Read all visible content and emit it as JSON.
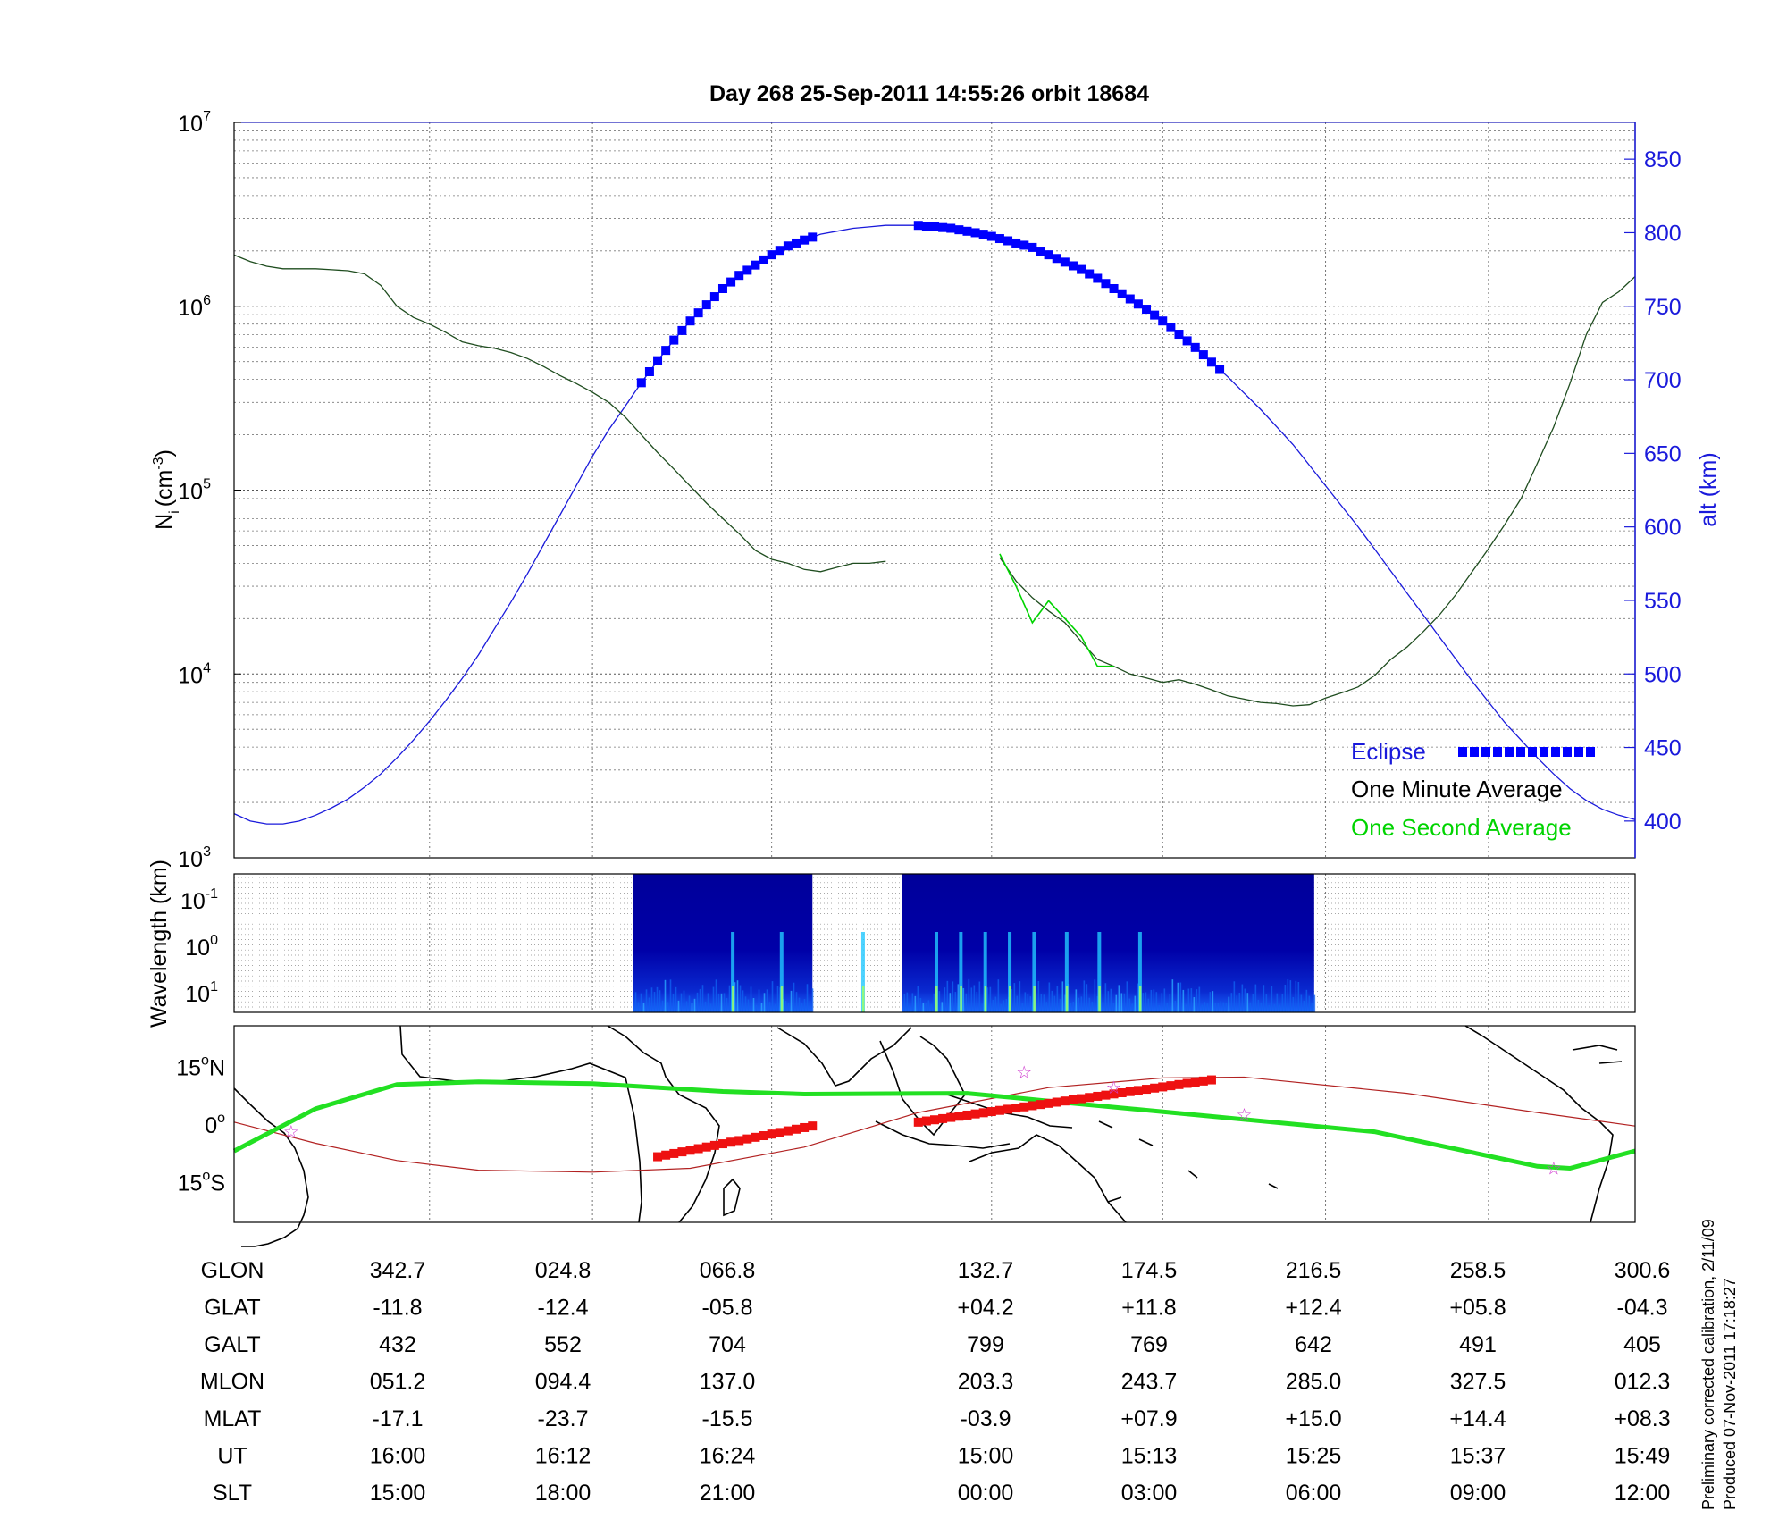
{
  "title": "Day 268  25-Sep-2011 14:55:26   orbit 18684",
  "colors": {
    "eclipse": "#0000ff",
    "one_minute": "#1f4d1f",
    "one_second": "#00d400",
    "altitude": "#1a1adb",
    "track_magnetic": "#22e022",
    "track_geographic": "#b22222",
    "eclipse_track": "#ee1111",
    "spectrogram_bg": "#00008f"
  },
  "chart_data": [
    {
      "type": "line",
      "name": "ion_density_panel",
      "x": [
        0,
        1,
        2,
        3,
        4,
        5,
        6,
        7,
        8,
        9,
        10,
        11,
        12,
        13,
        14,
        15,
        16,
        17,
        18,
        19,
        20,
        21,
        22,
        23,
        24,
        25,
        26,
        27,
        28,
        29,
        30,
        31,
        32,
        33,
        34,
        35,
        36,
        37,
        38,
        39,
        40,
        41,
        42,
        43,
        44,
        45,
        46,
        47,
        48,
        49,
        50,
        51,
        52,
        53,
        54,
        55,
        56,
        57,
        58,
        59,
        60,
        61,
        62,
        63,
        64,
        65,
        66,
        67,
        68,
        69,
        70,
        71,
        72,
        73,
        74,
        75,
        76,
        77,
        78,
        79,
        80,
        81,
        82,
        83,
        84,
        85,
        86
      ],
      "y_left": {
        "label": "N",
        "label_sub": "i",
        "label_unit": "(cm",
        "label_unit_sup": "-3",
        "label_unit_end": ")",
        "scale": "log",
        "range": [
          1000,
          10000000
        ],
        "ticks": [
          {
            "base": "10",
            "exp": "3"
          },
          {
            "base": "10",
            "exp": "4"
          },
          {
            "base": "10",
            "exp": "5"
          },
          {
            "base": "10",
            "exp": "6"
          },
          {
            "base": "10",
            "exp": "7"
          }
        ]
      },
      "y_right": {
        "label": "alt (km)",
        "range": [
          375,
          875
        ],
        "ticks": [
          "400",
          "450",
          "500",
          "550",
          "600",
          "650",
          "700",
          "750",
          "800",
          "850"
        ]
      },
      "series": [
        {
          "name": "One Minute Average",
          "axis": "left",
          "y": [
            1900000,
            1750000,
            1650000,
            1600000,
            1600000,
            1600000,
            1580000,
            1560000,
            1500000,
            1300000,
            1000000,
            870000,
            800000,
            720000,
            640000,
            610000,
            590000,
            560000,
            520000,
            470000,
            420000,
            380000,
            340000,
            300000,
            250000,
            200000,
            160000,
            130000,
            105000,
            85000,
            70000,
            58000,
            47000,
            42000,
            40000,
            37000,
            36000,
            38000,
            40000,
            40000,
            41000,
            null,
            null,
            null,
            null,
            null,
            null,
            43000,
            32000,
            26000,
            22000,
            19000,
            15000,
            12000,
            11000,
            10000,
            9500,
            9000,
            9300,
            8800,
            8200,
            7600,
            7300,
            7000,
            6900,
            6700,
            6800,
            7400,
            7900,
            8500,
            9800,
            12000,
            14000,
            17000,
            21000,
            27000,
            36000,
            48000,
            65000,
            90000,
            140000,
            220000,
            380000,
            700000,
            1050000,
            1200000,
            1450000
          ]
        },
        {
          "name": "One Second Average",
          "axis": "left",
          "y": [
            null,
            null,
            null,
            null,
            null,
            null,
            null,
            null,
            null,
            null,
            null,
            null,
            null,
            null,
            null,
            null,
            null,
            null,
            null,
            null,
            null,
            null,
            null,
            null,
            null,
            null,
            null,
            null,
            null,
            null,
            null,
            null,
            null,
            null,
            null,
            null,
            null,
            null,
            null,
            null,
            null,
            null,
            null,
            null,
            null,
            null,
            null,
            45000,
            30000,
            19000,
            25000,
            20000,
            16000,
            11000,
            11000,
            null,
            null,
            null,
            null,
            null,
            null,
            null,
            null,
            null,
            null,
            null,
            null,
            null,
            null,
            null,
            null,
            null,
            null,
            null,
            null,
            null,
            null,
            null,
            null,
            null,
            null,
            null,
            null,
            null,
            null,
            null,
            null
          ]
        },
        {
          "name": "altitude",
          "axis": "right",
          "y": [
            405,
            400,
            398,
            398,
            400,
            404,
            409,
            415,
            423,
            432,
            443,
            455,
            468,
            482,
            497,
            513,
            531,
            549,
            568,
            588,
            608,
            628,
            648,
            666,
            682,
            698,
            713,
            727,
            740,
            751,
            762,
            771,
            778,
            785,
            791,
            795,
            799,
            801,
            803,
            804,
            805,
            805,
            805,
            804,
            803,
            801,
            799,
            796,
            793,
            790,
            785,
            780,
            775,
            769,
            762,
            755,
            748,
            740,
            731,
            722,
            712,
            702,
            691,
            680,
            668,
            656,
            642,
            628,
            614,
            600,
            585,
            570,
            555,
            540,
            525,
            510,
            495,
            481,
            467,
            455,
            443,
            432,
            422,
            414,
            408,
            404,
            401
          ]
        },
        {
          "name": "Eclipse",
          "axis": "right",
          "marker": "square",
          "segments": [
            [
              25,
              35.5
            ],
            [
              42,
              60.5
            ]
          ]
        }
      ],
      "legend": {
        "placement": "bottom-right",
        "entries": [
          "Eclipse",
          "One Minute Average",
          "One Second Average"
        ]
      },
      "grid": true
    },
    {
      "type": "heatmap",
      "name": "wavelength_spectrogram",
      "y_label": "Wavelength (km)",
      "y_ticks": [
        {
          "base": "10",
          "exp": "-1"
        },
        {
          "base": "10",
          "exp": "0"
        },
        {
          "base": "10",
          "exp": "1"
        }
      ],
      "data_segments": [
        [
          24.5,
          35.5
        ],
        [
          41,
          66.3
        ]
      ]
    },
    {
      "type": "map",
      "name": "ground_track_map",
      "y_ticks": [
        {
          "deg": "15",
          "hemi": "N",
          "lat": 15
        },
        {
          "deg": "0",
          "hemi": "",
          "lat": 0
        },
        {
          "deg": "15",
          "hemi": "S",
          "lat": -15
        }
      ],
      "tracks": [
        {
          "name": "magnetic_track",
          "lat": [
            [
              0,
              -7
            ],
            [
              5,
              4
            ],
            [
              10,
              10.3
            ],
            [
              15,
              11
            ],
            [
              22,
              10.5
            ],
            [
              30,
              8.5
            ],
            [
              35,
              7.8
            ],
            [
              45,
              8
            ],
            [
              50,
              6
            ],
            [
              60,
              2
            ],
            [
              70,
              -2
            ],
            [
              80,
              -11
            ],
            [
              82,
              -11.5
            ],
            [
              86,
              -7
            ]
          ]
        },
        {
          "name": "geographic_track",
          "lat": [
            [
              0,
              0.5
            ],
            [
              5,
              -5
            ],
            [
              10,
              -9.5
            ],
            [
              15,
              -12
            ],
            [
              22,
              -12.5
            ],
            [
              28,
              -11.5
            ],
            [
              35,
              -6
            ],
            [
              42,
              3
            ],
            [
              50,
              9.5
            ],
            [
              57,
              12
            ],
            [
              62,
              12.2
            ],
            [
              72,
              8
            ],
            [
              80,
              3
            ],
            [
              86,
              -0.5
            ]
          ]
        },
        {
          "name": "eclipse_track",
          "segments": [
            [
              [
                26,
                -8.5
              ],
              [
                35.5,
                -0.5
              ]
            ],
            [
              [
                42,
                0.5
              ],
              [
                60,
                11.5
              ]
            ]
          ]
        }
      ],
      "stars": [
        [
          3.5,
          -2
        ],
        [
          48.5,
          13.5
        ],
        [
          54,
          9.5
        ],
        [
          62,
          2.5
        ],
        [
          81,
          -11.5
        ]
      ]
    }
  ],
  "table": {
    "rows": [
      {
        "label": "GLON",
        "values": [
          "342.7",
          "024.8",
          "066.8",
          "132.7",
          "174.5",
          "216.5",
          "258.5",
          "300.6"
        ]
      },
      {
        "label": "GLAT",
        "values": [
          "-11.8",
          "-12.4",
          "-05.8",
          "+04.2",
          "+11.8",
          "+12.4",
          "+05.8",
          "-04.3"
        ]
      },
      {
        "label": "GALT",
        "values": [
          "432",
          "552",
          "704",
          "799",
          "769",
          "642",
          "491",
          "405"
        ]
      },
      {
        "label": "MLON",
        "values": [
          "051.2",
          "094.4",
          "137.0",
          "203.3",
          "243.7",
          "285.0",
          "327.5",
          "012.3"
        ]
      },
      {
        "label": "MLAT",
        "values": [
          "-17.1",
          "-23.7",
          "-15.5",
          "-03.9",
          "+07.9",
          "+15.0",
          "+14.4",
          "+08.3"
        ]
      },
      {
        "label": "UT",
        "values": [
          "16:00",
          "16:12",
          "16:24",
          "15:00",
          "15:13",
          "15:25",
          "15:37",
          "15:49"
        ]
      },
      {
        "label": "SLT",
        "values": [
          "15:00",
          "18:00",
          "21:00",
          "00:00",
          "03:00",
          "06:00",
          "09:00",
          "12:00"
        ]
      }
    ]
  },
  "footnotes": [
    "Preliminary corrected calibration, 2/11/09",
    "Produced 07-Nov-2011 17:18:27"
  ]
}
